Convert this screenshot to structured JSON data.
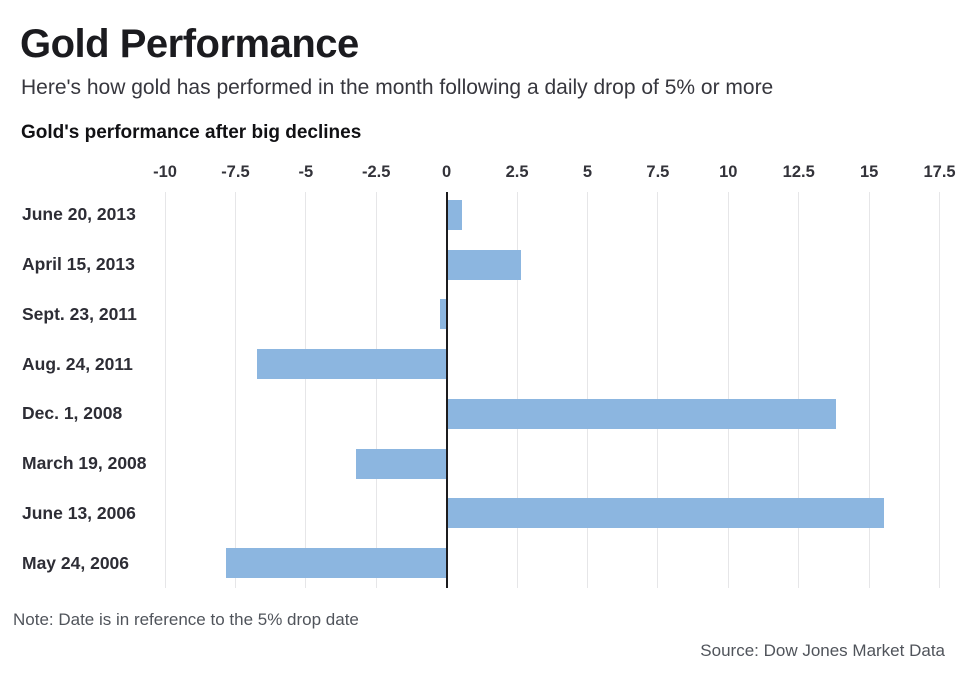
{
  "header": {
    "title": "Gold Performance",
    "subtitle": "Here's how gold has performed in the month following a daily drop of 5% or more",
    "chart_heading": "Gold's performance after big declines"
  },
  "chart_data": {
    "type": "bar",
    "orientation": "horizontal",
    "title": "Gold's performance after big declines",
    "xlabel": "",
    "ylabel": "",
    "categories": [
      "June 20, 2013",
      "April 15, 2013",
      "Sept. 23, 2011",
      "Aug. 24, 2011",
      "Dec. 1, 2008",
      "March 19, 2008",
      "June 13, 2006",
      "May 24, 2006"
    ],
    "values": [
      0.5,
      2.6,
      -0.2,
      -6.7,
      13.8,
      -3.2,
      15.5,
      -7.8
    ],
    "xlim": [
      -10,
      17.8
    ],
    "xticks": [
      -10,
      -7.5,
      -5,
      -2.5,
      0,
      2.5,
      5,
      7.5,
      10,
      12.5,
      15,
      17.5
    ],
    "grid": true,
    "legend": "none",
    "bar_color": "#8cb6e0",
    "grid_color": "#e6e6e8",
    "zero_line_color": "#1c1c1e"
  },
  "footer": {
    "note": "Note: Date is in reference to the 5% drop date",
    "source": "Source: Dow Jones Market Data"
  }
}
